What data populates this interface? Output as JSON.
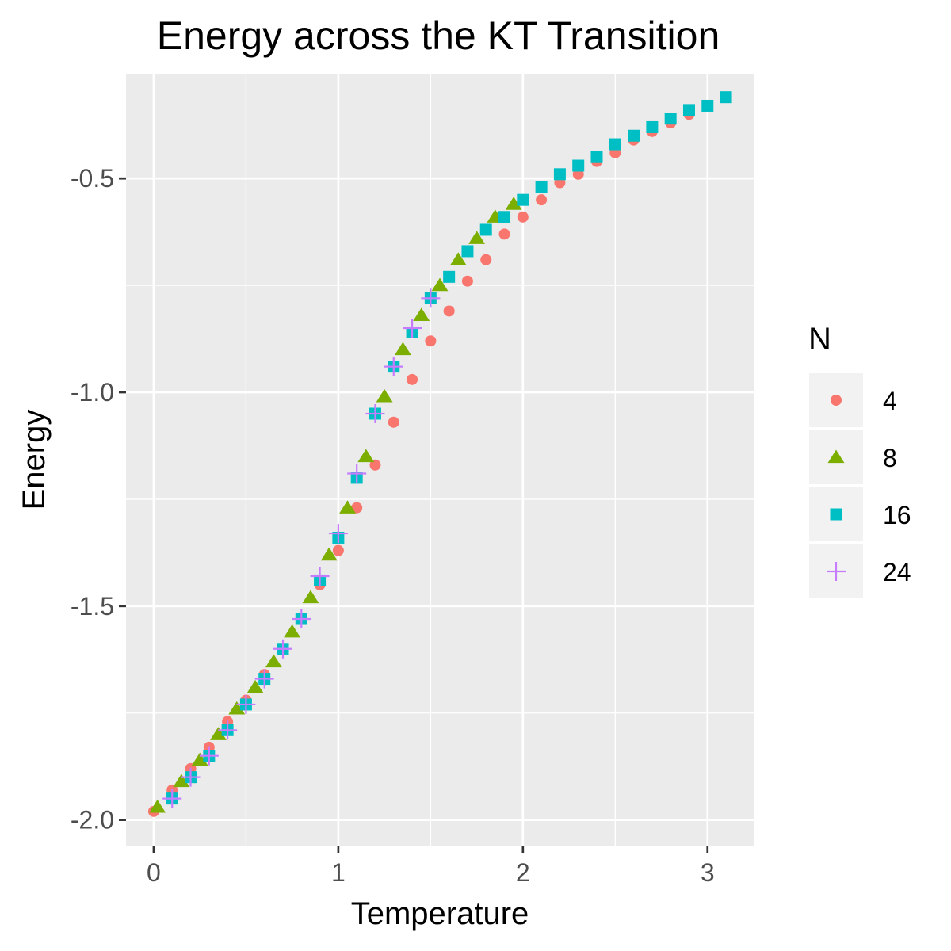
{
  "chart_data": {
    "type": "scatter",
    "title": "Energy across the KT Transition",
    "xlabel": "Temperature",
    "ylabel": "Energy",
    "xlim": [
      -0.15,
      3.25
    ],
    "ylim": [
      -2.06,
      -0.255
    ],
    "x_ticks": [
      0,
      1,
      2,
      3
    ],
    "y_ticks": [
      -2.0,
      -1.5,
      -1.0,
      -0.5
    ],
    "x_tick_labels": [
      "0",
      "1",
      "2",
      "3"
    ],
    "y_tick_labels": [
      "-2.0",
      "-1.5",
      "-1.0",
      "-0.5"
    ],
    "grid": true,
    "legend": {
      "title": "N",
      "position": "right"
    },
    "series": [
      {
        "name": "4",
        "shape": "circle",
        "color": "#F8766D",
        "points": [
          [
            0.0,
            -1.98
          ],
          [
            0.1,
            -1.93
          ],
          [
            0.2,
            -1.88
          ],
          [
            0.3,
            -1.83
          ],
          [
            0.4,
            -1.77
          ],
          [
            0.5,
            -1.72
          ],
          [
            0.6,
            -1.66
          ],
          [
            0.7,
            -1.6
          ],
          [
            0.8,
            -1.53
          ],
          [
            0.9,
            -1.45
          ],
          [
            1.0,
            -1.37
          ],
          [
            1.1,
            -1.27
          ],
          [
            1.2,
            -1.17
          ],
          [
            1.3,
            -1.07
          ],
          [
            1.4,
            -0.97
          ],
          [
            1.5,
            -0.88
          ],
          [
            1.6,
            -0.81
          ],
          [
            1.7,
            -0.74
          ],
          [
            1.8,
            -0.69
          ],
          [
            1.9,
            -0.63
          ],
          [
            2.0,
            -0.59
          ],
          [
            2.1,
            -0.55
          ],
          [
            2.2,
            -0.51
          ],
          [
            2.3,
            -0.49
          ],
          [
            2.4,
            -0.46
          ],
          [
            2.5,
            -0.44
          ],
          [
            2.6,
            -0.41
          ],
          [
            2.7,
            -0.39
          ],
          [
            2.8,
            -0.37
          ],
          [
            2.9,
            -0.35
          ],
          [
            3.0,
            -0.33
          ]
        ]
      },
      {
        "name": "8",
        "shape": "triangle",
        "color": "#7CAE00",
        "points": [
          [
            0.02,
            -1.97
          ],
          [
            0.15,
            -1.91
          ],
          [
            0.25,
            -1.86
          ],
          [
            0.35,
            -1.8
          ],
          [
            0.45,
            -1.74
          ],
          [
            0.55,
            -1.69
          ],
          [
            0.65,
            -1.63
          ],
          [
            0.75,
            -1.56
          ],
          [
            0.85,
            -1.48
          ],
          [
            0.95,
            -1.38
          ],
          [
            1.05,
            -1.27
          ],
          [
            1.15,
            -1.15
          ],
          [
            1.25,
            -1.01
          ],
          [
            1.35,
            -0.9
          ],
          [
            1.45,
            -0.82
          ],
          [
            1.55,
            -0.75
          ],
          [
            1.65,
            -0.69
          ],
          [
            1.75,
            -0.64
          ],
          [
            1.85,
            -0.59
          ],
          [
            1.95,
            -0.56
          ]
        ]
      },
      {
        "name": "16",
        "shape": "square",
        "color": "#00BFC4",
        "points": [
          [
            0.1,
            -1.95
          ],
          [
            0.2,
            -1.9
          ],
          [
            0.3,
            -1.85
          ],
          [
            0.4,
            -1.79
          ],
          [
            0.5,
            -1.73
          ],
          [
            0.6,
            -1.67
          ],
          [
            0.7,
            -1.6
          ],
          [
            0.8,
            -1.53
          ],
          [
            0.9,
            -1.44
          ],
          [
            1.0,
            -1.34
          ],
          [
            1.1,
            -1.2
          ],
          [
            1.2,
            -1.05
          ],
          [
            1.3,
            -0.94
          ],
          [
            1.4,
            -0.86
          ],
          [
            1.5,
            -0.78
          ],
          [
            1.6,
            -0.73
          ],
          [
            1.7,
            -0.67
          ],
          [
            1.8,
            -0.62
          ],
          [
            1.9,
            -0.59
          ],
          [
            2.0,
            -0.55
          ],
          [
            2.1,
            -0.52
          ],
          [
            2.2,
            -0.49
          ],
          [
            2.3,
            -0.47
          ],
          [
            2.4,
            -0.45
          ],
          [
            2.5,
            -0.42
          ],
          [
            2.6,
            -0.4
          ],
          [
            2.7,
            -0.38
          ],
          [
            2.8,
            -0.36
          ],
          [
            2.9,
            -0.34
          ],
          [
            3.0,
            -0.33
          ],
          [
            3.1,
            -0.31
          ]
        ]
      },
      {
        "name": "24",
        "shape": "plus",
        "color": "#C77CFF",
        "points": [
          [
            0.1,
            -1.95
          ],
          [
            0.2,
            -1.9
          ],
          [
            0.3,
            -1.85
          ],
          [
            0.4,
            -1.79
          ],
          [
            0.5,
            -1.73
          ],
          [
            0.6,
            -1.67
          ],
          [
            0.7,
            -1.6
          ],
          [
            0.8,
            -1.53
          ],
          [
            0.9,
            -1.43
          ],
          [
            1.0,
            -1.33
          ],
          [
            1.1,
            -1.19
          ],
          [
            1.2,
            -1.05
          ],
          [
            1.3,
            -0.94
          ],
          [
            1.4,
            -0.85
          ],
          [
            1.5,
            -0.78
          ]
        ]
      }
    ]
  }
}
